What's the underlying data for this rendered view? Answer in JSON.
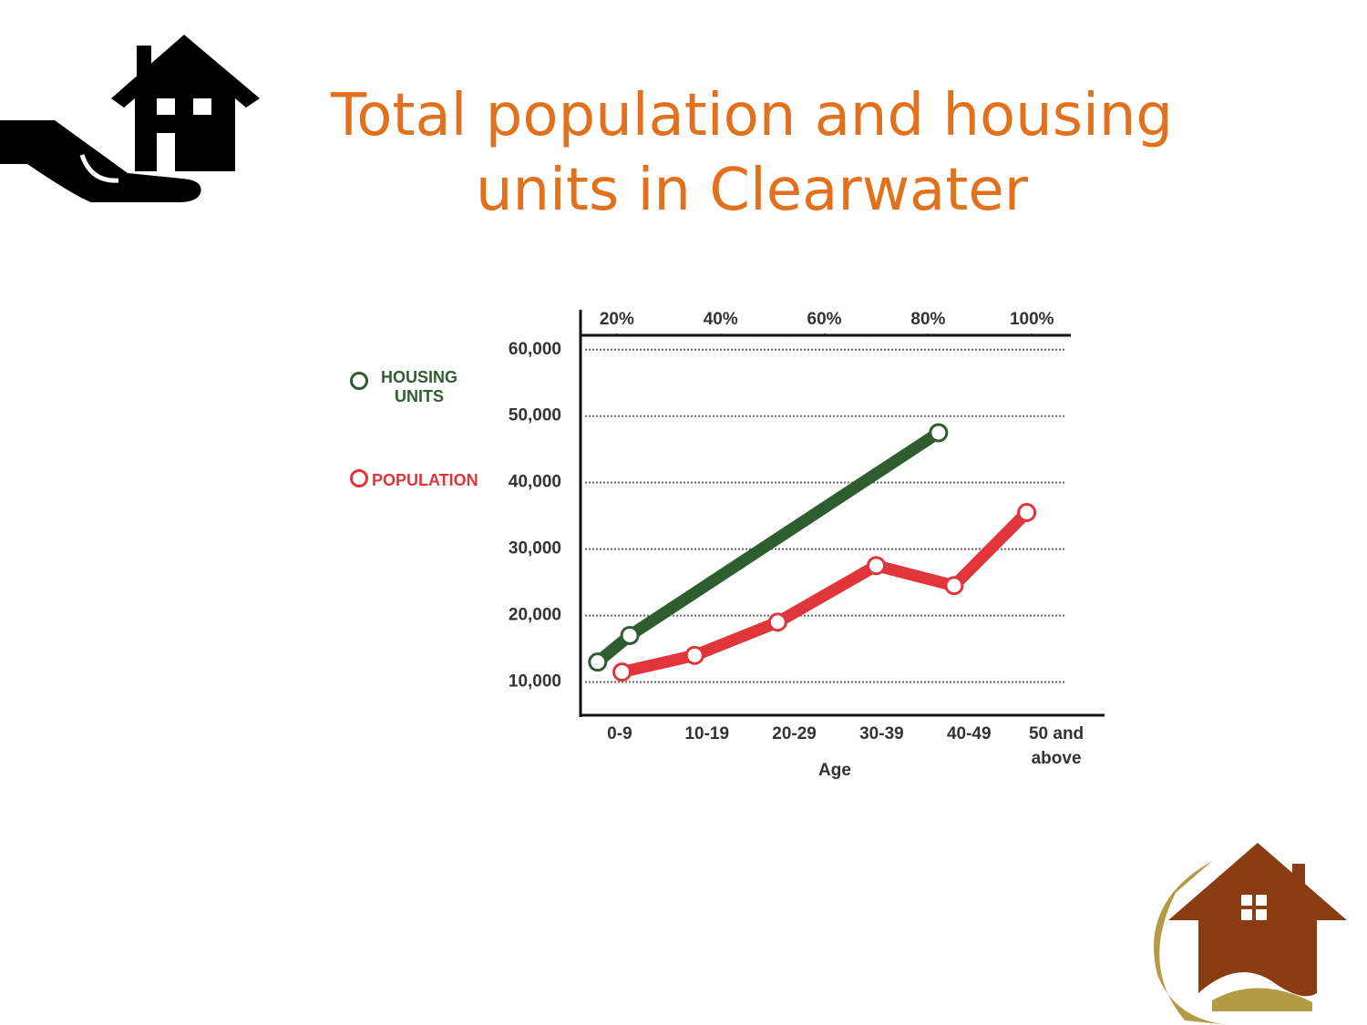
{
  "chart_data": {
    "type": "line",
    "title": "Total population and housing units in Clearwater",
    "x_label": "Age",
    "categories": [
      "0-9",
      "10-19",
      "20-29",
      "30-39",
      "40-49",
      "50 and above"
    ],
    "xlim": [
      13,
      114
    ],
    "xticks": [
      {
        "value": 20,
        "label": "20%"
      },
      {
        "value": 40,
        "label": "40%"
      },
      {
        "value": 60,
        "label": "60%"
      },
      {
        "value": 80,
        "label": "80%"
      },
      {
        "value": 100,
        "label": "100%"
      }
    ],
    "ylim": [
      5000,
      66000
    ],
    "yticks": [
      {
        "value": 10000,
        "label": "10,000"
      },
      {
        "value": 20000,
        "label": "20,000"
      },
      {
        "value": 30000,
        "label": "30,000"
      },
      {
        "value": 40000,
        "label": "40,000"
      },
      {
        "value": 50000,
        "label": "50,000"
      },
      {
        "value": 60000,
        "label": "60,000"
      }
    ],
    "grid": true,
    "series": [
      {
        "name": "HOUSING UNITS",
        "color": "#2e5e30",
        "x": [
          16.3,
          22.5,
          82
        ],
        "values": [
          13000,
          17000,
          47500
        ]
      },
      {
        "name": "POPULATION",
        "color": "#e0353a",
        "x": [
          21,
          35,
          51,
          70,
          85,
          99
        ],
        "values": [
          11500,
          14000,
          19000,
          27500,
          24500,
          35500
        ]
      }
    ]
  }
}
